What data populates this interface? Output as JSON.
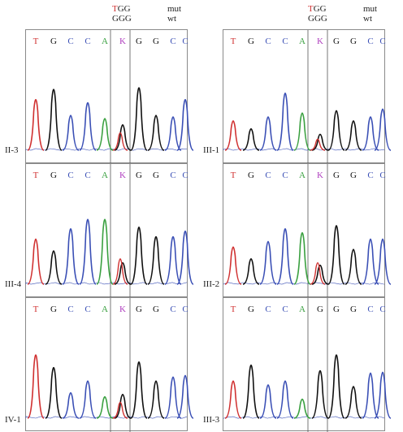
{
  "header": {
    "left": {
      "mut_seq_prefix": "T",
      "mut_seq_rest": "GG",
      "wt_seq": "GGG",
      "mut_label": "mut",
      "wt_label": "wt"
    },
    "right": {
      "mut_seq_prefix": "T",
      "mut_seq_rest": "GG",
      "wt_seq": "GGG",
      "mut_label": "mut",
      "wt_label": "wt"
    }
  },
  "colors": {
    "T": "#d03030",
    "G": "#111111",
    "C": "#3a4fb5",
    "A": "#3aa040",
    "K": "#b040c0"
  },
  "panels": [
    {
      "label": "II-3",
      "bases": [
        "T",
        "G",
        "C",
        "C",
        "A",
        "K",
        "G",
        "G",
        "C",
        "C"
      ]
    },
    {
      "label": "III-4",
      "bases": [
        "T",
        "G",
        "C",
        "C",
        "A",
        "K",
        "G",
        "G",
        "C",
        "C"
      ]
    },
    {
      "label": "IV-1",
      "bases": [
        "T",
        "G",
        "C",
        "C",
        "A",
        "K",
        "G",
        "G",
        "C",
        "C"
      ]
    },
    {
      "label": "III-1",
      "bases": [
        "T",
        "G",
        "C",
        "C",
        "A",
        "K",
        "G",
        "G",
        "C",
        "C"
      ]
    },
    {
      "label": "III-2",
      "bases": [
        "T",
        "G",
        "C",
        "C",
        "A",
        "K",
        "G",
        "G",
        "C",
        "C"
      ]
    },
    {
      "label": "III-3",
      "bases": [
        "T",
        "G",
        "C",
        "C",
        "A",
        "G",
        "G",
        "G",
        "C",
        "C"
      ]
    }
  ]
}
